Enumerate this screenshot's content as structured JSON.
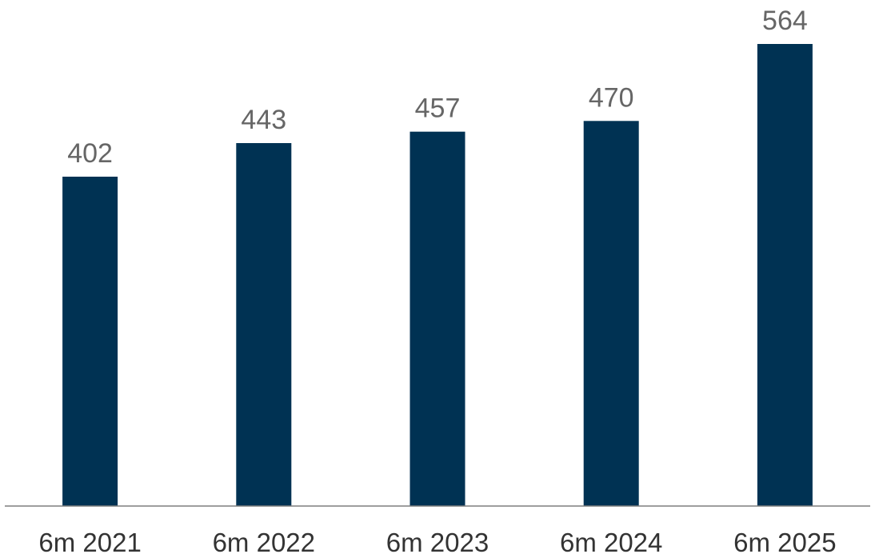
{
  "chart_data": {
    "type": "bar",
    "title": "",
    "xlabel": "",
    "ylabel": "",
    "categories": [
      "6m 2021",
      "6m 2022",
      "6m 2023",
      "6m 2024",
      "6m 2025"
    ],
    "values": [
      402,
      443,
      457,
      470,
      564
    ],
    "data_labels": [
      "402",
      "443",
      "457",
      "470",
      "564"
    ],
    "ylim": [
      0,
      564
    ],
    "grid": false,
    "legend": "none",
    "colors": {
      "bar": "#003253",
      "axis": "#7f7f7f",
      "value_label": "#666666",
      "tick_label": "#333333"
    }
  }
}
